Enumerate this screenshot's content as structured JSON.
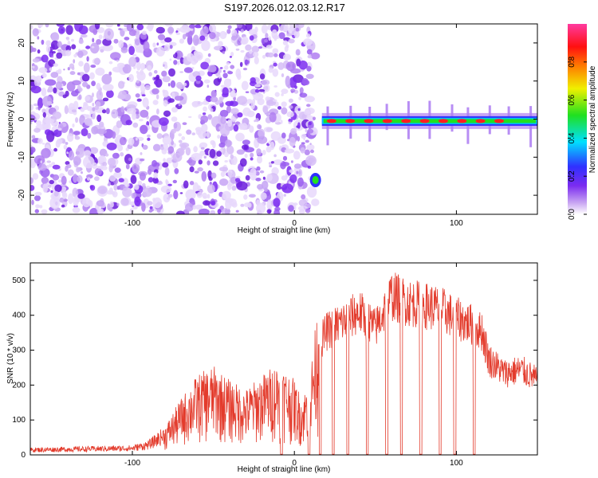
{
  "title": "S197.2026.012.03.12.R17",
  "colors": {
    "spectrum": "#7b2cf0",
    "trace": "#e33b2c",
    "axis": "#000000"
  },
  "chart_data": [
    {
      "type": "heatmap",
      "title": "S197.2026.012.03.12.R17",
      "xlabel": "Height of straight line (km)",
      "ylabel": "Frequency (Hz)",
      "xlim": [
        -163,
        150
      ],
      "ylim": [
        -25,
        25
      ],
      "xticks": [
        -100,
        0,
        100
      ],
      "yticks": [
        -20,
        -10,
        0,
        10,
        20
      ],
      "colorbar": {
        "label": "Normalized spectral amplitude",
        "range": [
          0,
          1
        ],
        "ticks": [
          0,
          0.2,
          0.4,
          0.6,
          0.8
        ]
      },
      "noise_region_x": [
        -163,
        10
      ],
      "feature_start_blob": {
        "x": 13,
        "y": -16
      },
      "tone": {
        "x_start": 17,
        "x_end": 150,
        "frequency": -0.5
      }
    },
    {
      "type": "line",
      "xlabel": "Height of straight line (km)",
      "ylabel": "SNR (10 * v/v)",
      "xlim": [
        -163,
        150
      ],
      "ylim": [
        0,
        550
      ],
      "xticks": [
        -100,
        0,
        100
      ],
      "yticks": [
        0,
        100,
        200,
        300,
        400,
        500
      ],
      "envelope": {
        "x": [
          -163,
          -100,
          -90,
          -80,
          -70,
          -60,
          -50,
          -40,
          -30,
          -20,
          -10,
          0,
          5,
          10,
          15,
          20,
          30,
          40,
          50,
          60,
          70,
          80,
          90,
          100,
          110,
          115,
          120,
          130,
          140,
          150
        ],
        "y": [
          15,
          20,
          30,
          60,
          120,
          170,
          190,
          160,
          140,
          170,
          200,
          160,
          120,
          180,
          340,
          380,
          410,
          440,
          390,
          490,
          470,
          460,
          450,
          420,
          400,
          380,
          280,
          240,
          250,
          220
        ]
      },
      "dropouts_x": [
        -8,
        9,
        16,
        24,
        33,
        45,
        57,
        66,
        78,
        90,
        99,
        111
      ]
    }
  ]
}
